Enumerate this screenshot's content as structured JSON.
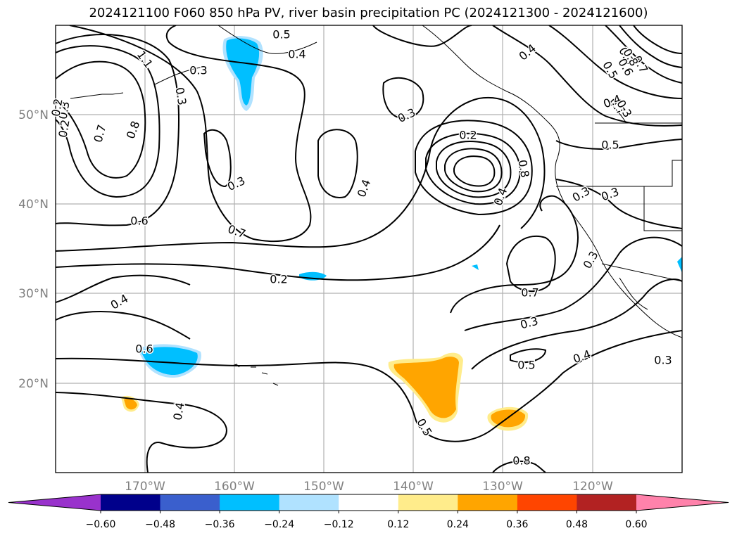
{
  "title": "2024121100 F060 850 hPa PV, river basin precipitation PC (2024121300 - 2024121600)",
  "map": {
    "lon_range": [
      -180,
      -110
    ],
    "lat_range": [
      10,
      60
    ],
    "lat_ticks": [
      "50°N",
      "40°N",
      "30°N",
      "20°N"
    ],
    "lon_ticks": [
      "170°W",
      "160°W",
      "150°W",
      "140°W",
      "130°W",
      "120°W"
    ],
    "contour_labels": [
      "0.3",
      "0.5",
      "0.4",
      "0.3",
      "0.3",
      "0.7",
      "0.8",
      "0.3",
      "0.4",
      "0.3",
      "0.6",
      "0.7",
      "0.2",
      "0.4",
      "0.6",
      "0.4",
      "0.5",
      "0.8",
      "0.7",
      "0.3",
      "0.5",
      "0.4",
      "0.3",
      "0.2",
      "0.4",
      "0.8",
      "0.3",
      "0.3",
      "0.5",
      "0.3",
      "0.4",
      "0.3",
      "0.5",
      "0.7",
      "0.4",
      "0.3",
      "0.2",
      "0.2",
      "1.1",
      "0.7",
      "0.8",
      "0.6"
    ]
  },
  "colorbar": {
    "ticks": [
      "−0.60",
      "−0.48",
      "−0.36",
      "−0.24",
      "−0.12",
      "0.12",
      "0.24",
      "0.36",
      "0.48",
      "0.60"
    ],
    "colors": [
      "#9932cc",
      "#00008b",
      "#3a5fcd",
      "#00bfff",
      "#b0e2ff",
      "#ffffff",
      "#ffec8b",
      "#ffa500",
      "#ff4500",
      "#b22222",
      "#ff82ab"
    ]
  }
}
